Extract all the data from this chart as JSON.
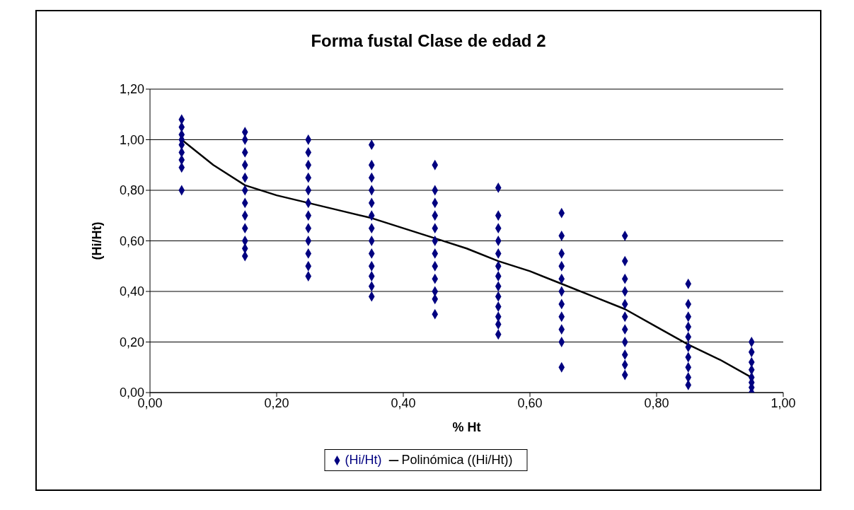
{
  "chart_data": {
    "type": "scatter",
    "title": "Forma fustal Clase de edad 2",
    "xlabel": "% Ht",
    "ylabel": "(Hi/Ht)",
    "xlim": [
      0,
      1
    ],
    "ylim": [
      0,
      1.2
    ],
    "xticks": [
      {
        "value": 0,
        "label": "0,00"
      },
      {
        "value": 0.2,
        "label": "0,20"
      },
      {
        "value": 0.4,
        "label": "0,40"
      },
      {
        "value": 0.6,
        "label": "0,60"
      },
      {
        "value": 0.8,
        "label": "0,80"
      },
      {
        "value": 1,
        "label": "1,00"
      }
    ],
    "yticks": [
      {
        "value": 0,
        "label": "0,00"
      },
      {
        "value": 0.2,
        "label": "0,20"
      },
      {
        "value": 0.4,
        "label": "0,40"
      },
      {
        "value": 0.6,
        "label": "0,60"
      },
      {
        "value": 0.8,
        "label": "0,80"
      },
      {
        "value": 1,
        "label": "1,00"
      },
      {
        "value": 1.2,
        "label": "1,20"
      }
    ],
    "grid": "y",
    "legend": "bottom",
    "marker": "diamond",
    "series": [
      {
        "name": "(Hi/Ht)",
        "color": "#000080",
        "x": [
          0.05,
          0.05,
          0.05,
          0.05,
          0.05,
          0.05,
          0.05,
          0.05,
          0.05,
          0.15,
          0.15,
          0.15,
          0.15,
          0.15,
          0.15,
          0.15,
          0.15,
          0.15,
          0.15,
          0.15,
          0.15,
          0.25,
          0.25,
          0.25,
          0.25,
          0.25,
          0.25,
          0.25,
          0.25,
          0.25,
          0.25,
          0.25,
          0.25,
          0.35,
          0.35,
          0.35,
          0.35,
          0.35,
          0.35,
          0.35,
          0.35,
          0.35,
          0.35,
          0.35,
          0.35,
          0.35,
          0.45,
          0.45,
          0.45,
          0.45,
          0.45,
          0.45,
          0.45,
          0.45,
          0.45,
          0.45,
          0.45,
          0.45,
          0.55,
          0.55,
          0.55,
          0.55,
          0.55,
          0.55,
          0.55,
          0.55,
          0.55,
          0.55,
          0.55,
          0.55,
          0.55,
          0.65,
          0.65,
          0.65,
          0.65,
          0.65,
          0.65,
          0.65,
          0.65,
          0.65,
          0.65,
          0.65,
          0.75,
          0.75,
          0.75,
          0.75,
          0.75,
          0.75,
          0.75,
          0.75,
          0.75,
          0.75,
          0.75,
          0.85,
          0.85,
          0.85,
          0.85,
          0.85,
          0.85,
          0.85,
          0.85,
          0.85,
          0.85,
          0.95,
          0.95,
          0.95,
          0.95,
          0.95,
          0.95,
          0.95,
          0.95
        ],
        "values": [
          0.8,
          0.89,
          0.92,
          0.95,
          0.98,
          1.0,
          1.02,
          1.05,
          1.08,
          0.54,
          0.57,
          0.6,
          0.65,
          0.7,
          0.75,
          0.8,
          0.85,
          0.9,
          0.95,
          1.0,
          1.03,
          0.46,
          0.5,
          0.55,
          0.6,
          0.65,
          0.7,
          0.75,
          0.8,
          0.85,
          0.9,
          0.95,
          1.0,
          0.38,
          0.42,
          0.46,
          0.5,
          0.55,
          0.6,
          0.65,
          0.7,
          0.75,
          0.8,
          0.85,
          0.9,
          0.98,
          0.31,
          0.37,
          0.4,
          0.45,
          0.5,
          0.55,
          0.6,
          0.65,
          0.7,
          0.75,
          0.8,
          0.9,
          0.23,
          0.27,
          0.3,
          0.34,
          0.38,
          0.42,
          0.46,
          0.5,
          0.55,
          0.6,
          0.65,
          0.7,
          0.81,
          0.1,
          0.2,
          0.25,
          0.3,
          0.35,
          0.4,
          0.45,
          0.5,
          0.55,
          0.62,
          0.71,
          0.07,
          0.11,
          0.15,
          0.2,
          0.25,
          0.3,
          0.35,
          0.4,
          0.45,
          0.52,
          0.62,
          0.03,
          0.06,
          0.1,
          0.14,
          0.18,
          0.22,
          0.26,
          0.3,
          0.35,
          0.43,
          0.0,
          0.02,
          0.04,
          0.06,
          0.09,
          0.12,
          0.16,
          0.2
        ]
      },
      {
        "name": "Polinómica ((Hi/Ht))",
        "type": "line",
        "color": "#000000",
        "marker": "none",
        "x": [
          0.05,
          0.1,
          0.15,
          0.2,
          0.25,
          0.3,
          0.35,
          0.4,
          0.45,
          0.5,
          0.55,
          0.6,
          0.65,
          0.7,
          0.75,
          0.8,
          0.85,
          0.9,
          0.95
        ],
        "values": [
          1.0,
          0.9,
          0.82,
          0.78,
          0.75,
          0.72,
          0.69,
          0.65,
          0.61,
          0.57,
          0.52,
          0.48,
          0.43,
          0.38,
          0.33,
          0.26,
          0.19,
          0.13,
          0.06
        ]
      }
    ]
  }
}
